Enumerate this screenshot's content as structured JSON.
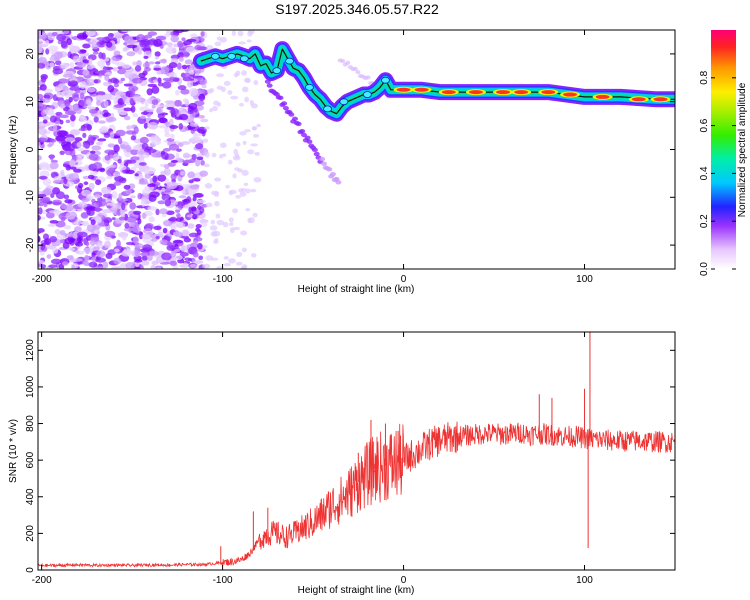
{
  "title": "S197.2025.346.05.57.R22",
  "chart_data": [
    {
      "type": "heatmap",
      "xlabel": "Height of straight line (km)",
      "ylabel": "Frequency (Hz)",
      "xlim": [
        -202,
        150
      ],
      "ylim": [
        -25,
        25
      ],
      "xticks": [
        -200,
        -100,
        0,
        100
      ],
      "yticks": [
        -20,
        -10,
        0,
        10,
        20
      ],
      "ridge": {
        "x": [
          -112,
          -108,
          -104,
          -100,
          -96,
          -92,
          -88,
          -85,
          -82,
          -79,
          -76,
          -73,
          -70,
          -67,
          -64,
          -61,
          -58,
          -55,
          -52,
          -49,
          -46,
          -43,
          -40,
          -37,
          -34,
          -31,
          -28,
          -25,
          -22,
          -19,
          -16,
          -13,
          -10,
          -7,
          -4,
          -1,
          0,
          10,
          20,
          40,
          60,
          80,
          100,
          120,
          140,
          150
        ],
        "y": [
          18.5,
          19,
          19.5,
          19,
          19.5,
          20,
          19.5,
          19,
          20,
          17.5,
          18,
          16,
          16.5,
          21,
          19,
          17,
          16.5,
          15,
          13,
          11.5,
          10.5,
          9,
          8,
          7.5,
          9,
          10,
          10.5,
          11,
          11.5,
          11.5,
          12,
          13,
          14.5,
          12.5,
          12.5,
          12.5,
          12.5,
          12.5,
          12,
          12,
          12,
          12,
          11,
          11,
          10.5,
          10.5
        ]
      },
      "colorbar": {
        "label": "Normalized spectral amplitude",
        "ticks": [
          "0.0",
          "0.2",
          "0.4",
          "0.6",
          "0.8"
        ],
        "range": [
          0,
          1
        ]
      }
    },
    {
      "type": "line",
      "xlabel": "Height of straight line (km)",
      "ylabel": "SNR (10 * v/v)",
      "xlim": [
        -202,
        150
      ],
      "ylim": [
        0,
        1300
      ],
      "xticks": [
        -200,
        -100,
        0,
        100
      ],
      "yticks": [
        0,
        200,
        400,
        600,
        800,
        1000,
        1200
      ],
      "series": [
        {
          "name": "SNR",
          "color": "#ee3333",
          "x": [
            -202,
            -190,
            -180,
            -170,
            -160,
            -150,
            -140,
            -130,
            -120,
            -110,
            -105,
            -100,
            -95,
            -90,
            -85,
            -80,
            -75,
            -70,
            -65,
            -60,
            -55,
            -50,
            -45,
            -40,
            -35,
            -30,
            -25,
            -20,
            -15,
            -10,
            -5,
            0,
            5,
            10,
            15,
            20,
            25,
            30,
            35,
            40,
            45,
            50,
            55,
            60,
            65,
            70,
            75,
            80,
            85,
            90,
            95,
            100,
            105,
            110,
            120,
            130,
            140,
            150
          ],
          "y": [
            25,
            25,
            28,
            25,
            27,
            25,
            28,
            27,
            30,
            30,
            35,
            40,
            45,
            55,
            90,
            160,
            200,
            200,
            180,
            200,
            230,
            260,
            300,
            350,
            380,
            420,
            480,
            520,
            560,
            570,
            580,
            600,
            630,
            660,
            690,
            710,
            720,
            730,
            735,
            740,
            745,
            745,
            740,
            745,
            750,
            740,
            745,
            740,
            735,
            730,
            730,
            720,
            715,
            710,
            705,
            705,
            700,
            700
          ],
          "spikes": [
            {
              "x": -101,
              "y": 130
            },
            {
              "x": -83,
              "y": 320
            },
            {
              "x": -75,
              "y": 340
            },
            {
              "x": -58,
              "y": 260
            },
            {
              "x": -30,
              "y": 480
            },
            {
              "x": -25,
              "y": 640
            },
            {
              "x": -18,
              "y": 820
            },
            {
              "x": -16,
              "y": 580
            },
            {
              "x": -10,
              "y": 800
            },
            {
              "x": -3,
              "y": 760
            },
            {
              "x": 75,
              "y": 960
            },
            {
              "x": 82,
              "y": 940
            },
            {
              "x": 100,
              "y": 990
            },
            {
              "x": 103,
              "y": 1300
            },
            {
              "x": 102,
              "y": 120
            }
          ]
        }
      ]
    }
  ]
}
